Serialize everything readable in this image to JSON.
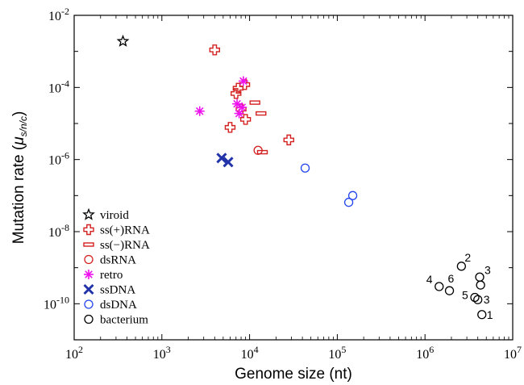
{
  "chart_data": {
    "type": "scatter",
    "xlabel": "Genome size (nt)",
    "ylabel": {
      "prefix": "Mutation rate (",
      "mu": "μ",
      "sub": "s/n/c",
      "suffix": ")"
    },
    "x_scale": "log",
    "y_scale": "log",
    "xlim": [
      100,
      10000000
    ],
    "ylim": [
      1e-11,
      0.01
    ],
    "x_ticks": [
      {
        "value": 100,
        "base": "10",
        "exp": "2"
      },
      {
        "value": 1000,
        "base": "10",
        "exp": "3"
      },
      {
        "value": 10000,
        "base": "10",
        "exp": "4"
      },
      {
        "value": 100000,
        "base": "10",
        "exp": "5"
      },
      {
        "value": 1000000,
        "base": "10",
        "exp": "6"
      },
      {
        "value": 10000000,
        "base": "10",
        "exp": "7"
      }
    ],
    "y_ticks": [
      {
        "value": 1e-10,
        "base": "10",
        "exp": "-10"
      },
      {
        "value": 1e-08,
        "base": "10",
        "exp": "-8"
      },
      {
        "value": 1e-06,
        "base": "10",
        "exp": "-6"
      },
      {
        "value": 0.0001,
        "base": "10",
        "exp": "-4"
      },
      {
        "value": 0.01,
        "base": "10",
        "exp": "-2"
      }
    ],
    "grid": false,
    "legend_position": "bottom-left",
    "series": [
      {
        "name": "viroid",
        "marker": "star",
        "color": "#000000",
        "points": [
          [
            360,
            0.0019
          ]
        ]
      },
      {
        "name": "ss(+)RNA",
        "marker": "plus",
        "color": "#d42020",
        "points": [
          [
            4000,
            0.0011
          ],
          [
            7000,
            6.8e-05
          ],
          [
            7400,
            9.5e-05
          ],
          [
            8800,
            0.00012
          ],
          [
            9000,
            1.3e-05
          ],
          [
            6000,
            7.8e-06
          ],
          [
            28000,
            3.5e-06
          ],
          [
            8000,
            2.5e-05
          ]
        ]
      },
      {
        "name": "ss(−)RNA",
        "marker": "minus",
        "color": "#d42020",
        "points": [
          [
            11500,
            3.8e-05
          ],
          [
            13500,
            1.9e-05
          ],
          [
            14000,
            1.6e-06
          ]
        ]
      },
      {
        "name": "dsRNA",
        "marker": "circle",
        "color": "#d42020",
        "points": [
          [
            12500,
            1.8e-06
          ]
        ]
      },
      {
        "name": "retro",
        "marker": "asterisk",
        "color": "#ee11ee",
        "points": [
          [
            2700,
            2.2e-05
          ],
          [
            7200,
            3.5e-05
          ],
          [
            7600,
            1.9e-05
          ],
          [
            8200,
            2.8e-05
          ],
          [
            8500,
            0.00015
          ]
        ]
      },
      {
        "name": "ssDNA",
        "marker": "cross",
        "color": "#2233aa",
        "points": [
          [
            4800,
            1.1e-06
          ],
          [
            5700,
            8.5e-07
          ]
        ]
      },
      {
        "name": "dsDNA",
        "marker": "circle",
        "color": "#2244ee",
        "points": [
          [
            43000,
            5.8e-07
          ],
          [
            135000,
            6.5e-08
          ],
          [
            150000,
            1e-07
          ]
        ]
      },
      {
        "name": "bacterium",
        "marker": "circle",
        "color": "#000000",
        "points": [
          [
            1450000,
            3e-10
          ],
          [
            1900000,
            2.3e-10
          ],
          [
            2600000,
            1.1e-09
          ],
          [
            3700000,
            1.5e-10
          ],
          [
            4000000,
            1.3e-10
          ],
          [
            4200000,
            5.5e-10
          ],
          [
            4300000,
            3.3e-10
          ],
          [
            4450000,
            5e-11
          ]
        ]
      }
    ],
    "annotations": [
      {
        "text": "1",
        "x": 4450000,
        "y": 5e-11
      },
      {
        "text": "2",
        "x": 2600000,
        "y": 1.1e-09
      },
      {
        "text": "3",
        "x": 4200000,
        "y": 5.5e-10
      },
      {
        "text": "3",
        "x": 4000000,
        "y": 1.3e-10
      },
      {
        "text": "4",
        "x": 1450000,
        "y": 3e-10
      },
      {
        "text": "5",
        "x": 3700000,
        "y": 1.5e-10
      },
      {
        "text": "6",
        "x": 1900000,
        "y": 2.3e-10
      }
    ]
  }
}
